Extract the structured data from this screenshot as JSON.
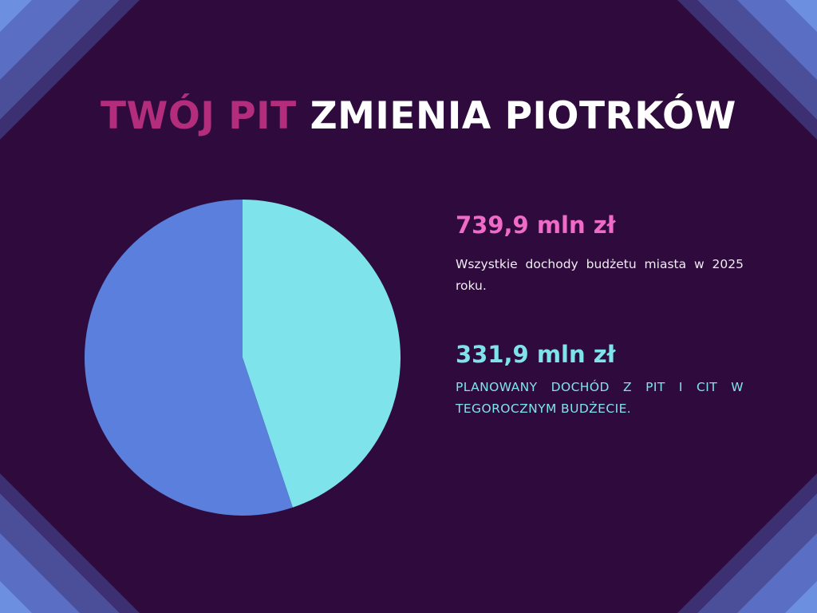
{
  "title": {
    "accent": "TWÓJ PIT",
    "main": "ZMIENIA PIOTRKÓW"
  },
  "stats": {
    "total": {
      "value": "739,9 mln zł",
      "description": "Wszystkie dochody budżetu miasta w 2025 roku."
    },
    "pit": {
      "value": "331,9 mln zł",
      "description": "PLANOWANY DOCHÓD Z PIT I CIT W TEGOROCZNYM BUDŻECIE."
    }
  },
  "chart_data": {
    "type": "pie",
    "slices": [
      {
        "value": 331.9,
        "color": "#7fe3eb"
      },
      {
        "value": 408.0,
        "color": "#5b7fdc"
      }
    ],
    "total": 739.9,
    "legend": "none"
  },
  "colors": {
    "background": "#2f0b3d",
    "accent_pink": "#b42d7d",
    "value_pink": "#f06ac8",
    "cyan": "#7fe3eb",
    "blue": "#5b7fdc"
  }
}
